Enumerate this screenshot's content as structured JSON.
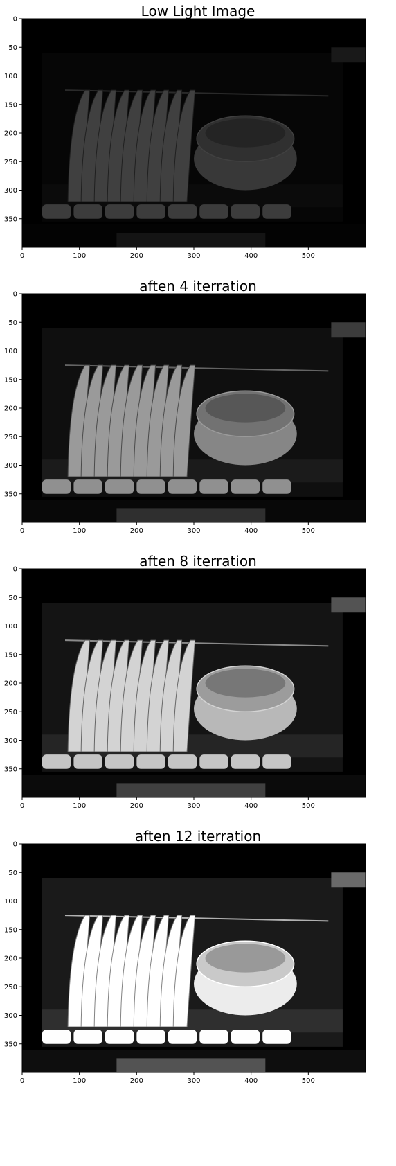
{
  "panels": [
    {
      "title": "Low Light Image",
      "brightness": 0.28,
      "contrast": 1.0
    },
    {
      "title": "aften 4 iterration",
      "brightness": 0.62,
      "contrast": 1.08
    },
    {
      "title": "aften 8 iterration",
      "brightness": 0.82,
      "contrast": 1.12
    },
    {
      "title": "aften 12 iterration",
      "brightness": 1.0,
      "contrast": 1.18
    }
  ],
  "axes": {
    "x_ticks": [
      "0",
      "100",
      "200",
      "300",
      "400",
      "500"
    ],
    "y_ticks": [
      "0",
      "50",
      "100",
      "150",
      "200",
      "250",
      "300",
      "350"
    ],
    "x_range": [
      0,
      600
    ],
    "y_range": [
      0,
      400
    ]
  },
  "colors": {
    "background": "#000000",
    "plate": "#e8e8e8",
    "bowl": "#d0d0d0"
  }
}
